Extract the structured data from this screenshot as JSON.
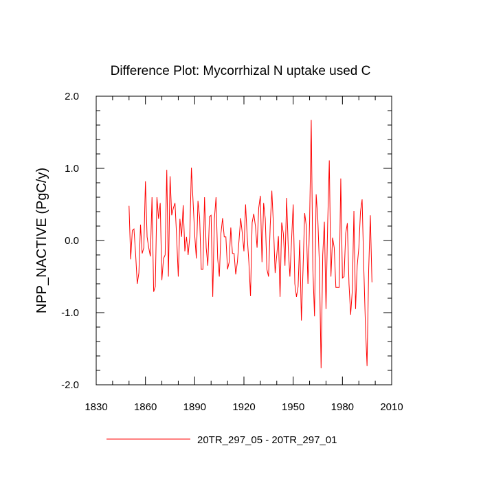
{
  "chart_data": {
    "type": "line",
    "title": "Difference Plot: Mycorrhizal N uptake used C",
    "xlabel": "",
    "ylabel": "NPP_NACTIVE  (PgC/y)",
    "xlim": [
      1830,
      2010
    ],
    "ylim": [
      -2.0,
      2.0
    ],
    "xticks": [
      1830,
      1860,
      1890,
      1920,
      1950,
      1980,
      2010
    ],
    "yticks": [
      -2.0,
      -1.0,
      0.0,
      1.0,
      2.0
    ],
    "xtick_labels": [
      "1830",
      "1860",
      "1890",
      "1920",
      "1950",
      "1980",
      "2010"
    ],
    "ytick_labels": [
      "-2.0",
      "-1.0",
      "0.0",
      "1.0",
      "2.0"
    ],
    "legend_position": "bottom",
    "series": [
      {
        "name": "20TR_297_05 - 20TR_297_01",
        "color": "#ff0000",
        "x_start": 1850,
        "x_step": 1,
        "values": [
          0.48,
          -0.26,
          0.14,
          0.16,
          -0.18,
          -0.6,
          -0.45,
          0.22,
          -0.18,
          -0.1,
          0.82,
          0.05,
          -0.1,
          -0.22,
          0.6,
          -0.71,
          -0.64,
          0.6,
          0.3,
          0.52,
          -0.55,
          -0.25,
          -0.2,
          0.98,
          -0.5,
          0.89,
          0.35,
          0.45,
          0.52,
          0.05,
          -0.5,
          0.3,
          0.05,
          0.49,
          -0.15,
          0.05,
          -0.2,
          0.05,
          1.01,
          0.55,
          0.08,
          -0.25,
          0.55,
          0.32,
          -0.4,
          -0.4,
          0.6,
          -0.1,
          -0.35,
          0.33,
          0.35,
          -0.78,
          0.3,
          0.6,
          -0.25,
          -0.5,
          0.1,
          0.31,
          0.05,
          0.05,
          -0.4,
          -0.3,
          0.18,
          -0.18,
          -0.18,
          -0.47,
          -0.3,
          0.0,
          0.31,
          0.1,
          -0.15,
          0.5,
          0.05,
          -0.3,
          -0.77,
          0.25,
          0.37,
          0.2,
          -0.1,
          0.45,
          0.62,
          -0.3,
          0.52,
          0.3,
          -0.4,
          -0.5,
          0.2,
          0.69,
          0.2,
          -0.45,
          -0.2,
          0.06,
          -0.78,
          0.25,
          0.1,
          -0.35,
          0.59,
          -0.1,
          -0.5,
          0.0,
          0.5,
          -0.6,
          -0.78,
          -0.64,
          0.01,
          -1.11,
          -0.4,
          0.38,
          0.2,
          -0.6,
          0.26,
          1.67,
          -0.4,
          -1.05,
          0.64,
          0.3,
          -0.35,
          -1.77,
          -0.2,
          0.26,
          -0.95,
          0.22,
          1.11,
          -0.5,
          0.04,
          -0.1,
          -0.65,
          -0.65,
          -0.65,
          0.86,
          -0.52,
          -0.5,
          0.1,
          0.24,
          -0.6,
          -1.03,
          -0.7,
          0.41,
          -0.95,
          -0.35,
          -0.1,
          0.4,
          0.57,
          -0.37,
          -1.17,
          -1.74,
          -0.4,
          0.35,
          -0.58
        ]
      }
    ]
  }
}
